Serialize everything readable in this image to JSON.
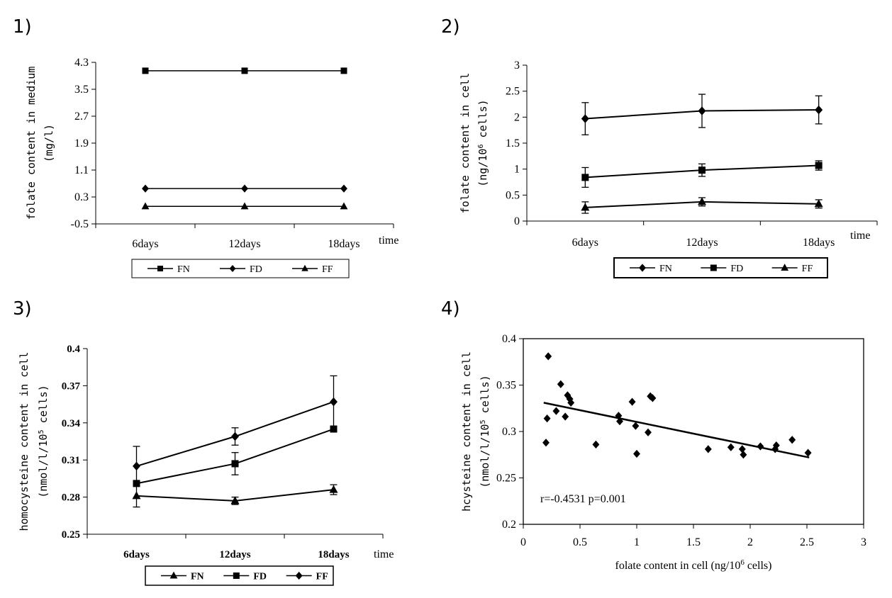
{
  "panels": [
    {
      "number": "1)"
    },
    {
      "number": "2)"
    },
    {
      "number": "3)"
    },
    {
      "number": "4)"
    }
  ],
  "chart_data": [
    {
      "type": "line",
      "categories": [
        "6days",
        "12days",
        "18days"
      ],
      "xlabel": "time",
      "ylabel": "folate content in medium",
      "ylabel2": "(mg/l)",
      "ylim": [
        -0.5,
        4.3
      ],
      "yticks": [
        "4.3",
        "3.5",
        "2.7",
        "1.9",
        "1.1",
        "0.3",
        "-0.5"
      ],
      "legend": "bottom",
      "series": [
        {
          "name": "FN",
          "marker": "square",
          "values": [
            4.05,
            4.05,
            4.05
          ]
        },
        {
          "name": "FD",
          "marker": "diamond",
          "values": [
            0.55,
            0.55,
            0.55
          ]
        },
        {
          "name": "FF",
          "marker": "triangle",
          "values": [
            0.02,
            0.02,
            0.02
          ]
        }
      ]
    },
    {
      "type": "line",
      "categories": [
        "6days",
        "12days",
        "18days"
      ],
      "xlabel": "time",
      "ylabel": "folate content in cell",
      "ylabel2": "(ng/10",
      "ylabel2_sup": "6",
      "ylabel2_end": " cells)",
      "ylim": [
        0,
        3
      ],
      "yticks": [
        "3",
        "2.5",
        "2",
        "1.5",
        "1",
        "0.5",
        "0"
      ],
      "legend": "bottom",
      "series": [
        {
          "name": "FN",
          "marker": "diamond",
          "values": [
            1.97,
            2.12,
            2.14
          ],
          "errors": [
            0.31,
            0.32,
            0.27
          ]
        },
        {
          "name": "FD",
          "marker": "square",
          "values": [
            0.84,
            0.98,
            1.07
          ],
          "errors": [
            0.19,
            0.12,
            0.09
          ]
        },
        {
          "name": "FF",
          "marker": "triangle",
          "values": [
            0.26,
            0.37,
            0.33
          ],
          "errors": [
            0.11,
            0.08,
            0.08
          ]
        }
      ]
    },
    {
      "type": "line",
      "categories": [
        "6days",
        "12days",
        "18days"
      ],
      "xlabel": "time",
      "ylabel": "homocysteine content in cell",
      "ylabel2": "(nmol/l/10",
      "ylabel2_sup": "5",
      "ylabel2_end": " cells)",
      "ylim": [
        0.25,
        0.4
      ],
      "yticks": [
        "0.4",
        "0.37",
        "0.34",
        "0.31",
        "0.28",
        "0.25"
      ],
      "legend": "bottom",
      "series": [
        {
          "name": "FN",
          "marker": "triangle",
          "values": [
            0.281,
            0.277,
            0.286
          ],
          "errors": [
            0.009,
            0.003,
            0.004
          ]
        },
        {
          "name": "FD",
          "marker": "square",
          "values": [
            0.291,
            0.307,
            0.335
          ],
          "errors": [
            0.0,
            0.009,
            0.0
          ]
        },
        {
          "name": "FF",
          "marker": "diamond",
          "values": [
            0.305,
            0.329,
            0.357
          ],
          "errors": [
            0.016,
            0.007,
            0.021
          ]
        }
      ]
    },
    {
      "type": "scatter",
      "xlabel": "folate content in cell (ng/10",
      "xlabel_sup": "6",
      "xlabel_end": " cells)",
      "ylabel": "hcysteine content in cell",
      "ylabel2": "(nmol/l/10",
      "ylabel2_sup": "5",
      "ylabel2_end": " cells)",
      "xlim": [
        0,
        3
      ],
      "ylim": [
        0.2,
        0.4
      ],
      "xticks": [
        "0",
        "0.5",
        "1",
        "1.5",
        "2",
        "2.5",
        "3"
      ],
      "yticks": [
        "0.4",
        "0.35",
        "0.3",
        "0.25",
        "0.2"
      ],
      "annotation": "r=-0.4531  p=0.001",
      "points": [
        [
          0.2,
          0.288
        ],
        [
          0.21,
          0.314
        ],
        [
          0.22,
          0.381
        ],
        [
          0.29,
          0.322
        ],
        [
          0.33,
          0.351
        ],
        [
          0.37,
          0.316
        ],
        [
          0.39,
          0.339
        ],
        [
          0.41,
          0.335
        ],
        [
          0.42,
          0.331
        ],
        [
          0.64,
          0.286
        ],
        [
          0.84,
          0.317
        ],
        [
          0.85,
          0.311
        ],
        [
          0.96,
          0.332
        ],
        [
          0.99,
          0.306
        ],
        [
          1.0,
          0.276
        ],
        [
          1.1,
          0.299
        ],
        [
          1.12,
          0.338
        ],
        [
          1.14,
          0.336
        ],
        [
          1.63,
          0.281
        ],
        [
          1.83,
          0.283
        ],
        [
          1.93,
          0.281
        ],
        [
          1.94,
          0.275
        ],
        [
          2.09,
          0.284
        ],
        [
          2.22,
          0.281
        ],
        [
          2.23,
          0.285
        ],
        [
          2.37,
          0.291
        ],
        [
          2.51,
          0.277
        ]
      ],
      "trendline": [
        [
          0.18,
          0.331
        ],
        [
          2.52,
          0.272
        ]
      ]
    }
  ]
}
